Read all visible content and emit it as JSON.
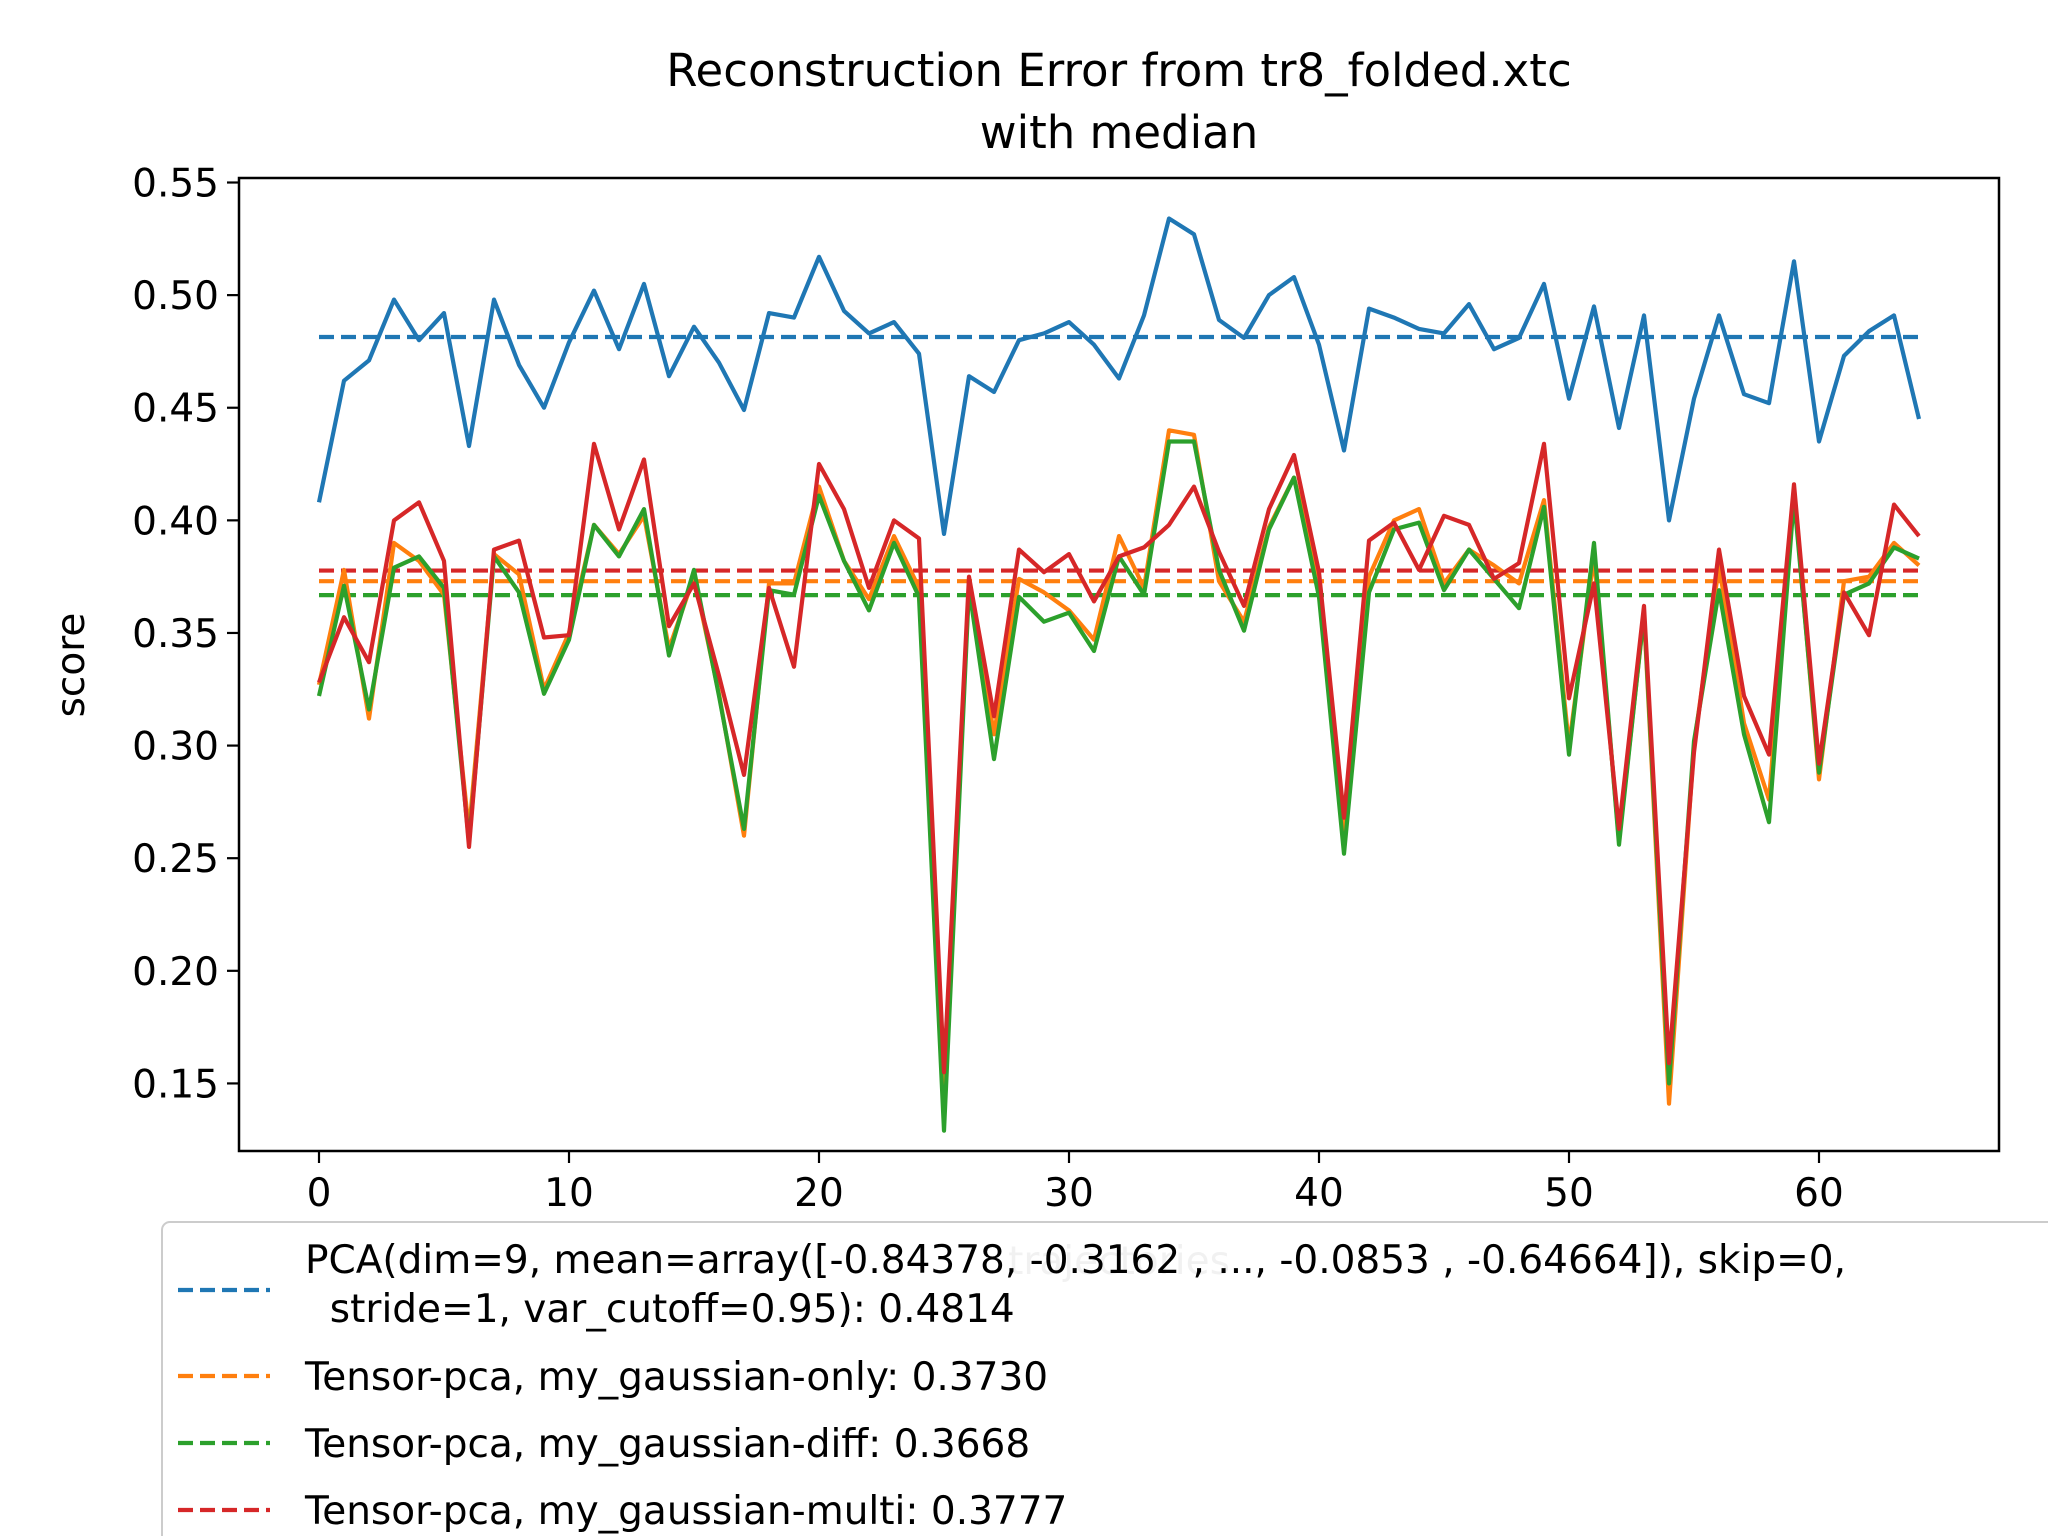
{
  "chart_data": {
    "type": "line",
    "title": "Reconstruction Error from tr8_folded.xtc",
    "subtitle": "with median",
    "xlabel": "trajectories",
    "ylabel": "score",
    "xlim": [
      -3.2,
      67.2
    ],
    "ylim": [
      0.12,
      0.552
    ],
    "x_ticks": [
      0,
      10,
      20,
      30,
      40,
      50,
      60
    ],
    "y_ticks": [
      0.15,
      0.2,
      0.25,
      0.3,
      0.35,
      0.4,
      0.45,
      0.5,
      0.55
    ],
    "y_tick_labels": [
      "0.15",
      "0.20",
      "0.25",
      "0.30",
      "0.35",
      "0.40",
      "0.45",
      "0.50",
      "0.55"
    ],
    "grid": false,
    "legend_placement": "bottom",
    "series": [
      {
        "name": "PCA",
        "color": "#1f77b4",
        "values": [
          0.408,
          0.462,
          0.471,
          0.498,
          0.48,
          0.492,
          0.433,
          0.498,
          0.469,
          0.45,
          0.479,
          0.502,
          0.476,
          0.505,
          0.464,
          0.486,
          0.47,
          0.449,
          0.492,
          0.49,
          0.517,
          0.493,
          0.483,
          0.488,
          0.474,
          0.394,
          0.464,
          0.457,
          0.48,
          0.483,
          0.488,
          0.478,
          0.463,
          0.491,
          0.534,
          0.527,
          0.489,
          0.481,
          0.5,
          0.508,
          0.478,
          0.431,
          0.494,
          0.49,
          0.485,
          0.483,
          0.496,
          0.476,
          0.481,
          0.505,
          0.454,
          0.495,
          0.441,
          0.491,
          0.4,
          0.454,
          0.491,
          0.456,
          0.452,
          0.515,
          0.435,
          0.473,
          0.484,
          0.491,
          0.445
        ]
      },
      {
        "name": "Tensor-pca, my_gaussian-only",
        "color": "#ff7f0e",
        "values": [
          0.327,
          0.378,
          0.312,
          0.39,
          0.382,
          0.367,
          0.262,
          0.385,
          0.376,
          0.325,
          0.35,
          0.398,
          0.385,
          0.402,
          0.343,
          0.375,
          0.323,
          0.26,
          0.372,
          0.372,
          0.415,
          0.382,
          0.365,
          0.393,
          0.37,
          0.142,
          0.372,
          0.305,
          0.374,
          0.368,
          0.36,
          0.347,
          0.393,
          0.37,
          0.44,
          0.438,
          0.373,
          0.355,
          0.397,
          0.419,
          0.375,
          0.258,
          0.375,
          0.4,
          0.405,
          0.372,
          0.387,
          0.38,
          0.372,
          0.409,
          0.3,
          0.384,
          0.258,
          0.358,
          0.141,
          0.3,
          0.38,
          0.31,
          0.276,
          0.413,
          0.285,
          0.373,
          0.375,
          0.39,
          0.38
        ]
      },
      {
        "name": "Tensor-pca, my_gaussian-diff",
        "color": "#2ca02c",
        "values": [
          0.322,
          0.371,
          0.316,
          0.379,
          0.384,
          0.37,
          0.257,
          0.384,
          0.368,
          0.323,
          0.347,
          0.398,
          0.384,
          0.405,
          0.34,
          0.378,
          0.322,
          0.263,
          0.369,
          0.367,
          0.411,
          0.382,
          0.36,
          0.39,
          0.366,
          0.129,
          0.37,
          0.294,
          0.366,
          0.355,
          0.359,
          0.342,
          0.384,
          0.367,
          0.435,
          0.435,
          0.378,
          0.351,
          0.396,
          0.419,
          0.366,
          0.252,
          0.368,
          0.396,
          0.399,
          0.369,
          0.387,
          0.374,
          0.361,
          0.406,
          0.296,
          0.39,
          0.256,
          0.359,
          0.15,
          0.302,
          0.369,
          0.305,
          0.266,
          0.41,
          0.288,
          0.367,
          0.372,
          0.388,
          0.383
        ]
      },
      {
        "name": "Tensor-pca, my_gaussian-multi",
        "color": "#d62728",
        "values": [
          0.328,
          0.357,
          0.337,
          0.4,
          0.408,
          0.382,
          0.255,
          0.387,
          0.391,
          0.348,
          0.349,
          0.434,
          0.396,
          0.427,
          0.353,
          0.372,
          0.331,
          0.287,
          0.37,
          0.335,
          0.425,
          0.405,
          0.37,
          0.4,
          0.392,
          0.155,
          0.375,
          0.313,
          0.387,
          0.377,
          0.385,
          0.364,
          0.384,
          0.388,
          0.398,
          0.415,
          0.386,
          0.362,
          0.405,
          0.429,
          0.377,
          0.268,
          0.391,
          0.399,
          0.378,
          0.402,
          0.398,
          0.374,
          0.381,
          0.434,
          0.321,
          0.372,
          0.263,
          0.362,
          0.159,
          0.297,
          0.387,
          0.322,
          0.296,
          0.416,
          0.292,
          0.368,
          0.349,
          0.407,
          0.393
        ]
      }
    ],
    "medians": [
      {
        "color": "#1f77b4",
        "value": 0.4814
      },
      {
        "color": "#ff7f0e",
        "value": 0.373
      },
      {
        "color": "#2ca02c",
        "value": 0.3668
      },
      {
        "color": "#d62728",
        "value": 0.3777
      }
    ],
    "legend": [
      {
        "color": "#1f77b4",
        "lines": [
          "PCA(dim=9, mean=array([-0.84378, -0.3162 , ..., -0.0853 , -0.64664]), skip=0,",
          "  stride=1, var_cutoff=0.95): 0.4814"
        ]
      },
      {
        "color": "#ff7f0e",
        "lines": [
          "Tensor-pca, my_gaussian-only: 0.3730"
        ]
      },
      {
        "color": "#2ca02c",
        "lines": [
          "Tensor-pca, my_gaussian-diff: 0.3668"
        ]
      },
      {
        "color": "#d62728",
        "lines": [
          "Tensor-pca, my_gaussian-multi: 0.3777"
        ]
      }
    ]
  }
}
